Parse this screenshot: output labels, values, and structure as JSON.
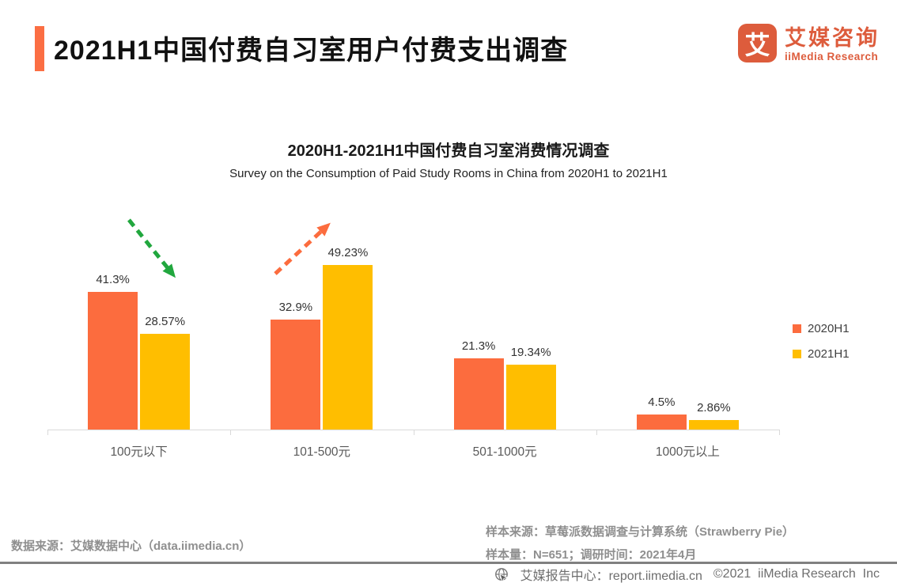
{
  "header": {
    "title": "2021H1中国付费自习室用户付费支出调查",
    "accent_color": "#FB6E43",
    "logo": {
      "glyph": "艾",
      "brand_cn": "艾媒咨询",
      "brand_en": "iiMedia Research",
      "color": "#DD5C3C"
    }
  },
  "chart": {
    "title": "2020H1-2021H1中国付费自习室消费情况调查",
    "subtitle": "Survey on the Consumption of Paid Study Rooms in China from 2020H1 to 2021H1"
  },
  "chart_data": {
    "type": "bar",
    "categories": [
      "100元以下",
      "101-500元",
      "501-1000元",
      "1000元以上"
    ],
    "series": [
      {
        "name": "2020H1",
        "color": "#FC6C3E",
        "values": [
          41.3,
          32.9,
          21.3,
          4.5
        ],
        "labels": [
          "41.3%",
          "32.9%",
          "21.3%",
          "4.5%"
        ]
      },
      {
        "name": "2021H1",
        "color": "#FFBE00",
        "values": [
          28.57,
          49.23,
          19.34,
          2.86
        ],
        "labels": [
          "28.57%",
          "49.23%",
          "19.34%",
          "2.86%"
        ]
      }
    ],
    "ylim": [
      0,
      55
    ],
    "grid": false,
    "legend_position": "right",
    "axis_color": "#D9D9D9",
    "annotations": [
      {
        "type": "arrow",
        "direction": "down-right",
        "color": "#21A73E",
        "target": "100元以下"
      },
      {
        "type": "arrow",
        "direction": "up-right",
        "color": "#FC6C3E",
        "target": "101-500元"
      }
    ]
  },
  "footer": {
    "data_source": "数据来源：艾媒数据中心（data.iimedia.cn）",
    "sample_source": "样本来源：草莓派数据调查与计算系统（Strawberry Pie）",
    "sample_info": "样本量：N=651；调研时间：2021年4月",
    "report_center": "艾媒报告中心：report.iimedia.cn",
    "copyright": "©2021  iiMedia Research  Inc"
  }
}
